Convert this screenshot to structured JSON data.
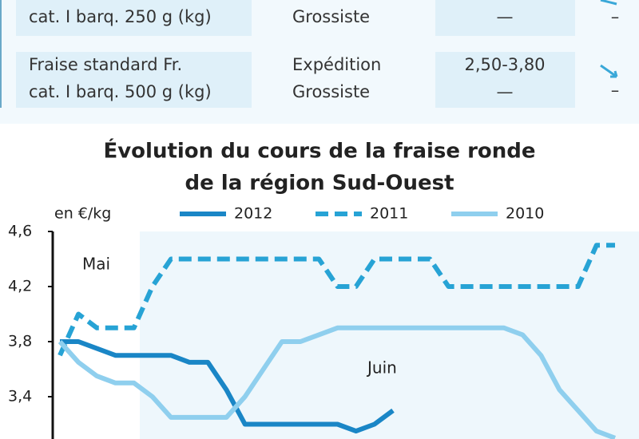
{
  "table": {
    "rows": [
      [
        [
          "cat. I barq. 250 g (kg)"
        ],
        [
          "Grossiste"
        ],
        [
          "—"
        ],
        [
          "–"
        ]
      ],
      [
        [
          "Fraise standard Fr.",
          "cat. I barq. 500 g (kg)"
        ],
        [
          "Expédition",
          "Grossiste"
        ],
        [
          "2,50-3,80",
          "—"
        ],
        [
          "–"
        ]
      ]
    ]
  },
  "chart_data": {
    "type": "line",
    "title": [
      "Évolution du cours de la fraise ronde",
      "de la région Sud-Ouest"
    ],
    "y_label": "en €/kg",
    "annotations": [
      "Mai",
      "Juin"
    ],
    "categories": [
      null,
      null,
      null,
      null,
      null,
      null,
      null,
      null,
      null,
      null,
      null,
      null,
      null,
      null,
      null,
      null,
      null,
      null,
      null,
      null,
      null,
      null,
      null,
      null,
      null,
      null,
      null,
      null,
      null,
      null,
      null
    ],
    "series": [
      {
        "name": "2012",
        "color": "#1a86c6",
        "dash": false,
        "values": [
          3.8,
          3.8,
          3.75,
          3.7,
          3.7,
          3.7,
          3.7,
          3.65,
          3.65,
          3.45,
          3.2,
          3.2,
          3.2,
          3.2,
          3.2,
          3.2,
          3.15,
          3.2,
          3.3,
          null,
          null,
          null,
          null,
          null,
          null,
          null,
          null,
          null,
          null,
          null,
          null
        ]
      },
      {
        "name": "2011",
        "color": "#27a3d5",
        "dash": true,
        "values": [
          3.7,
          4.0,
          3.9,
          3.9,
          3.9,
          4.2,
          4.4,
          4.4,
          4.4,
          4.4,
          4.4,
          4.4,
          4.4,
          4.4,
          4.4,
          4.2,
          4.2,
          4.4,
          4.4,
          4.4,
          4.4,
          4.2,
          4.2,
          4.2,
          4.2,
          4.2,
          4.2,
          4.2,
          4.2,
          4.5,
          4.5
        ]
      },
      {
        "name": "2010",
        "color": "#8fcfee",
        "dash": false,
        "values": [
          3.8,
          3.65,
          3.55,
          3.5,
          3.5,
          3.4,
          3.25,
          3.25,
          3.25,
          3.25,
          3.4,
          3.6,
          3.8,
          3.8,
          3.85,
          3.9,
          3.9,
          3.9,
          3.9,
          3.9,
          3.9,
          3.9,
          3.9,
          3.9,
          3.9,
          3.85,
          3.7,
          3.45,
          3.3,
          3.15,
          3.1
        ]
      }
    ],
    "ylim": [
      3.0,
      4.6
    ],
    "yticks": [
      {
        "value": 3.4,
        "label": "3,4"
      },
      {
        "value": 3.8,
        "label": "3,8"
      },
      {
        "value": 4.2,
        "label": "4,2"
      },
      {
        "value": 4.6,
        "label": "4,6"
      }
    ]
  }
}
